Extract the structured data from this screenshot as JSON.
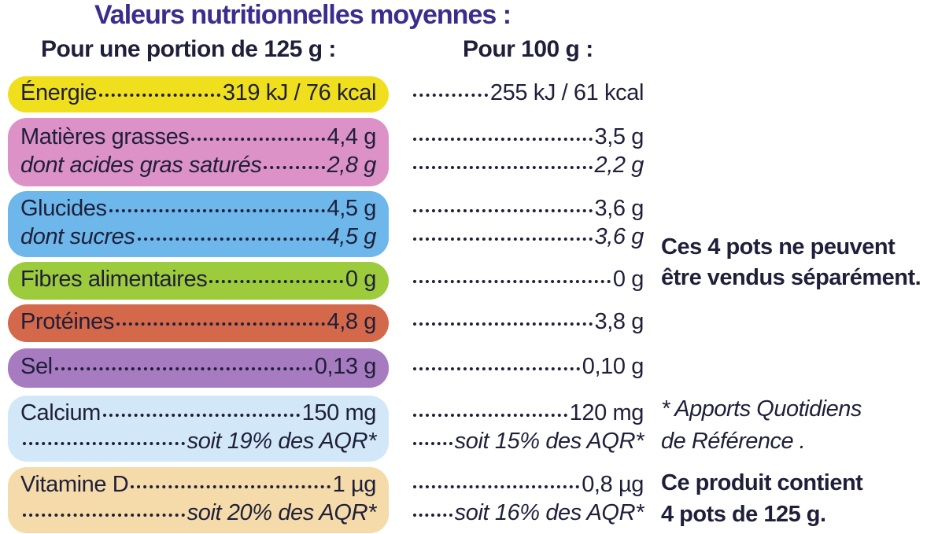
{
  "header": {
    "title": "Valeurs nutritionnelles moyennes :",
    "portion": "Pour une portion de 125 g :",
    "per100": "Pour 100 g :"
  },
  "rows": [
    {
      "lines": [
        {
          "label": "Énergie",
          "portion": "319 kJ / 76 kcal",
          "per100": "255 kJ / 61 kcal"
        }
      ]
    },
    {
      "lines": [
        {
          "label": "Matières grasses",
          "portion": "4,4 g",
          "per100": "3,5 g"
        },
        {
          "label": "dont acides gras saturés",
          "portion": "2,8 g",
          "per100": "2,2 g"
        }
      ]
    },
    {
      "lines": [
        {
          "label": "Glucides",
          "portion": "4,5 g",
          "per100": "3,6 g"
        },
        {
          "label": "dont sucres",
          "portion": "4,5 g",
          "per100": "3,6 g"
        }
      ]
    },
    {
      "lines": [
        {
          "label": "Fibres alimentaires",
          "portion": "0 g",
          "per100": "0 g"
        }
      ]
    },
    {
      "lines": [
        {
          "label": "Protéines",
          "portion": "4,8 g",
          "per100": "3,8 g"
        }
      ]
    },
    {
      "lines": [
        {
          "label": "Sel",
          "portion": "0,13 g",
          "per100": "0,10 g"
        }
      ]
    },
    {
      "lines": [
        {
          "label": "Calcium",
          "portion": "150 mg",
          "per100": "120 mg"
        },
        {
          "portion": "soit 19% des AQR*",
          "per100": "soit 15% des AQR*"
        }
      ]
    },
    {
      "lines": [
        {
          "label": "Vitamine D",
          "portion": "1 µg",
          "per100": "0,8 µg"
        },
        {
          "portion": "soit 20% des AQR*",
          "per100": "soit 16% des AQR*"
        }
      ]
    }
  ],
  "notes": {
    "sale": [
      "Ces 4 pots ne peuvent",
      "être vendus séparément."
    ],
    "aqr": [
      "* Apports Quotidiens",
      "de Référence ."
    ],
    "content": [
      "Ce produit contient",
      "4 pots de 125 g."
    ]
  }
}
